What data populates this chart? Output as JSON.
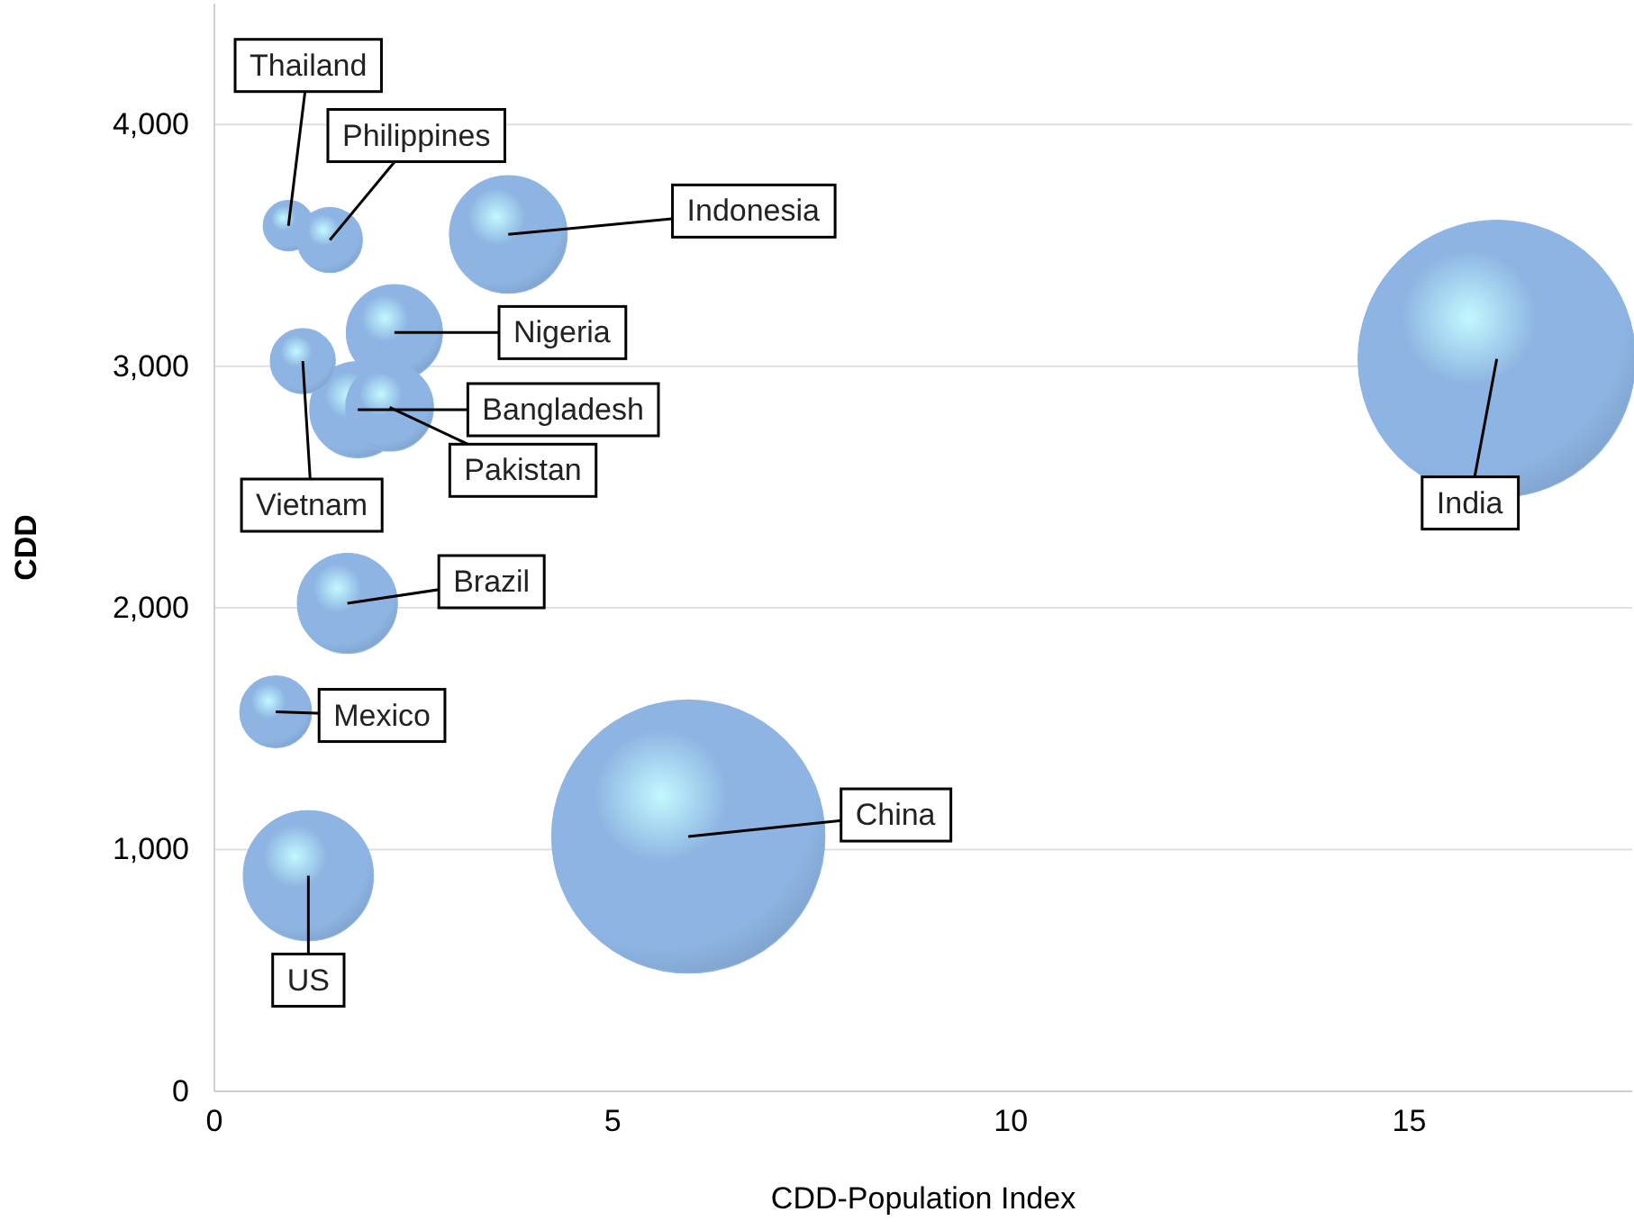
{
  "chart_data": {
    "type": "bubble",
    "xlabel": "CDD-Population Index",
    "ylabel": "CDD",
    "xlim": [
      0,
      17.8
    ],
    "ylim": [
      0,
      4500
    ],
    "xticks": [
      0,
      5,
      10,
      15
    ],
    "yticks": [
      0,
      {
        "value": 1000,
        "label": "1,000"
      },
      {
        "value": 2000,
        "label": "2,000"
      },
      {
        "value": 3000,
        "label": "3,000"
      },
      {
        "value": 4000,
        "label": "4,000"
      }
    ],
    "grid": "y",
    "series": [
      {
        "color": "#8db4e2",
        "x": [
          16.1,
          5.95,
          3.69,
          2.26,
          1.8,
          2.2,
          1.11,
          0.93,
          1.45,
          1.67,
          0.77,
          1.18
        ],
        "values": [
          3030,
          1054,
          3545,
          3139,
          2820,
          2830,
          3021,
          3581,
          3522,
          2019,
          1570,
          892
        ],
        "sizes": [
          1,
          0.97,
          0.18,
          0.12,
          0.12,
          0.1,
          0.055,
          0.033,
          0.055,
          0.13,
          0.067,
          0.22
        ]
      }
    ],
    "annotations": [
      {
        "text": "India",
        "x": 16.1,
        "y": 3030
      },
      {
        "text": "China",
        "x": 5.95,
        "y": 1054
      },
      {
        "text": "Indonesia",
        "x": 3.69,
        "y": 3545
      },
      {
        "text": "Nigeria",
        "x": 2.26,
        "y": 3139
      },
      {
        "text": "Bangladesh",
        "x": 1.8,
        "y": 2820
      },
      {
        "text": "Pakistan",
        "x": 2.2,
        "y": 2830
      },
      {
        "text": "Vietnam",
        "x": 1.11,
        "y": 3021
      },
      {
        "text": "Thailand",
        "x": 0.93,
        "y": 3581
      },
      {
        "text": "Philippines",
        "x": 1.45,
        "y": 3522
      },
      {
        "text": "Brazil",
        "x": 1.67,
        "y": 2019
      },
      {
        "text": "Mexico",
        "x": 0.77,
        "y": 1570
      },
      {
        "text": "US",
        "x": 1.18,
        "y": 892
      }
    ]
  }
}
